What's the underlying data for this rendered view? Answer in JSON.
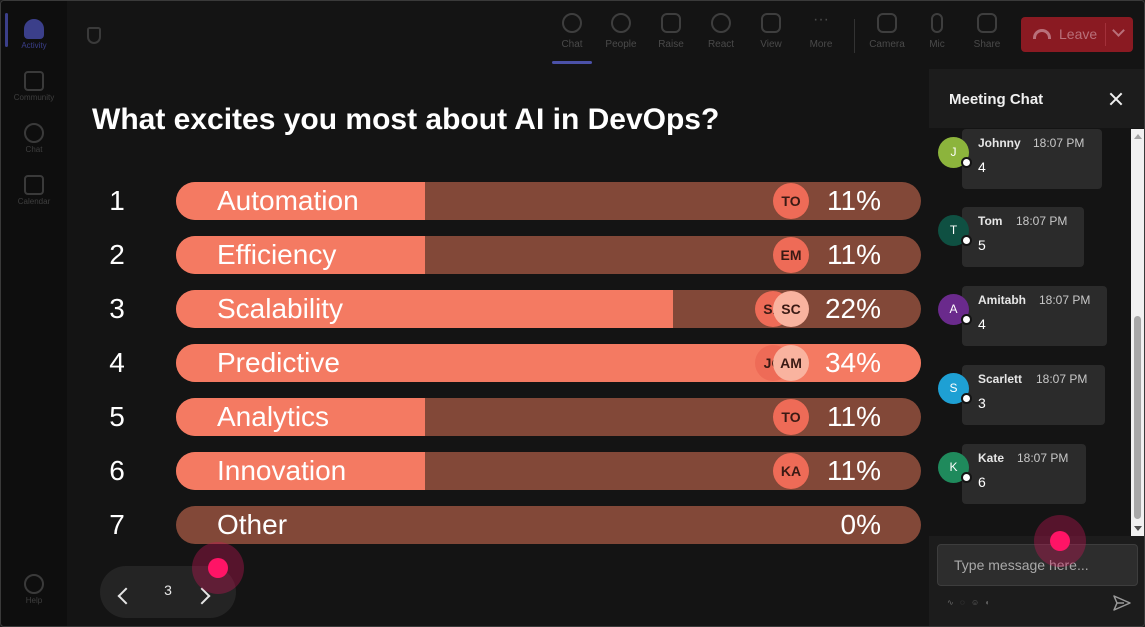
{
  "rail": {
    "items": [
      {
        "label": "Activity",
        "icon": "bell-icon",
        "active": true
      },
      {
        "label": "Community",
        "icon": "community-icon",
        "active": false
      },
      {
        "label": "Chat",
        "icon": "chat-icon",
        "active": false
      },
      {
        "label": "Calendar",
        "icon": "calendar-icon",
        "active": false
      }
    ],
    "help_label": "Help"
  },
  "toolbar": {
    "buttons": [
      {
        "label": "Chat",
        "icon": "chat-icon",
        "active": true
      },
      {
        "label": "People",
        "icon": "people-icon"
      },
      {
        "label": "Raise",
        "icon": "hand-icon"
      },
      {
        "label": "React",
        "icon": "smile-icon"
      },
      {
        "label": "View",
        "icon": "grid-icon"
      },
      {
        "label": "More",
        "icon": "more-icon"
      },
      {
        "label": "Camera",
        "icon": "camera-icon"
      },
      {
        "label": "Mic",
        "icon": "mic-icon"
      },
      {
        "label": "Share",
        "icon": "share-icon"
      }
    ],
    "leave_label": "Leave",
    "leave_color": "#8a1a22"
  },
  "poll": {
    "question": "What excites you most about AI in DevOps?",
    "fill_color": "#f47a62",
    "track_color": "#824838",
    "options": [
      {
        "num": "1",
        "label": "Automation",
        "pct": "11%",
        "value": 11,
        "voters": [
          "TO"
        ]
      },
      {
        "num": "2",
        "label": "Efficiency",
        "pct": "11%",
        "value": 11,
        "voters": [
          "EM"
        ]
      },
      {
        "num": "3",
        "label": "Scalability",
        "pct": "22%",
        "value": 22,
        "voters": [
          "SA",
          "SC"
        ]
      },
      {
        "num": "4",
        "label": "Predictive",
        "pct": "34%",
        "value": 34,
        "voters": [
          "JO",
          "AM"
        ]
      },
      {
        "num": "5",
        "label": "Analytics",
        "pct": "11%",
        "value": 11,
        "voters": [
          "TO"
        ]
      },
      {
        "num": "6",
        "label": "Innovation",
        "pct": "11%",
        "value": 11,
        "voters": [
          "KA"
        ]
      },
      {
        "num": "7",
        "label": "Other",
        "pct": "0%",
        "value": 0,
        "voters": []
      }
    ]
  },
  "pager": {
    "page": "3"
  },
  "chat": {
    "title": "Meeting Chat",
    "messages": [
      {
        "initial": "J",
        "name": "Johnny",
        "time": "18:07 PM",
        "text": "4",
        "color": "#8cb43c"
      },
      {
        "initial": "T",
        "name": "Tom",
        "time": "18:07 PM",
        "text": "5",
        "color": "#0f5042"
      },
      {
        "initial": "A",
        "name": "Amitabh",
        "time": "18:07 PM",
        "text": "4",
        "color": "#6a2a8c"
      },
      {
        "initial": "S",
        "name": "Scarlett",
        "time": "18:07 PM",
        "text": "3",
        "color": "#1ea0d4"
      },
      {
        "initial": "K",
        "name": "Kate",
        "time": "18:07 PM",
        "text": "6",
        "color": "#1f8a5c"
      }
    ],
    "input_placeholder": "Type message here..."
  }
}
